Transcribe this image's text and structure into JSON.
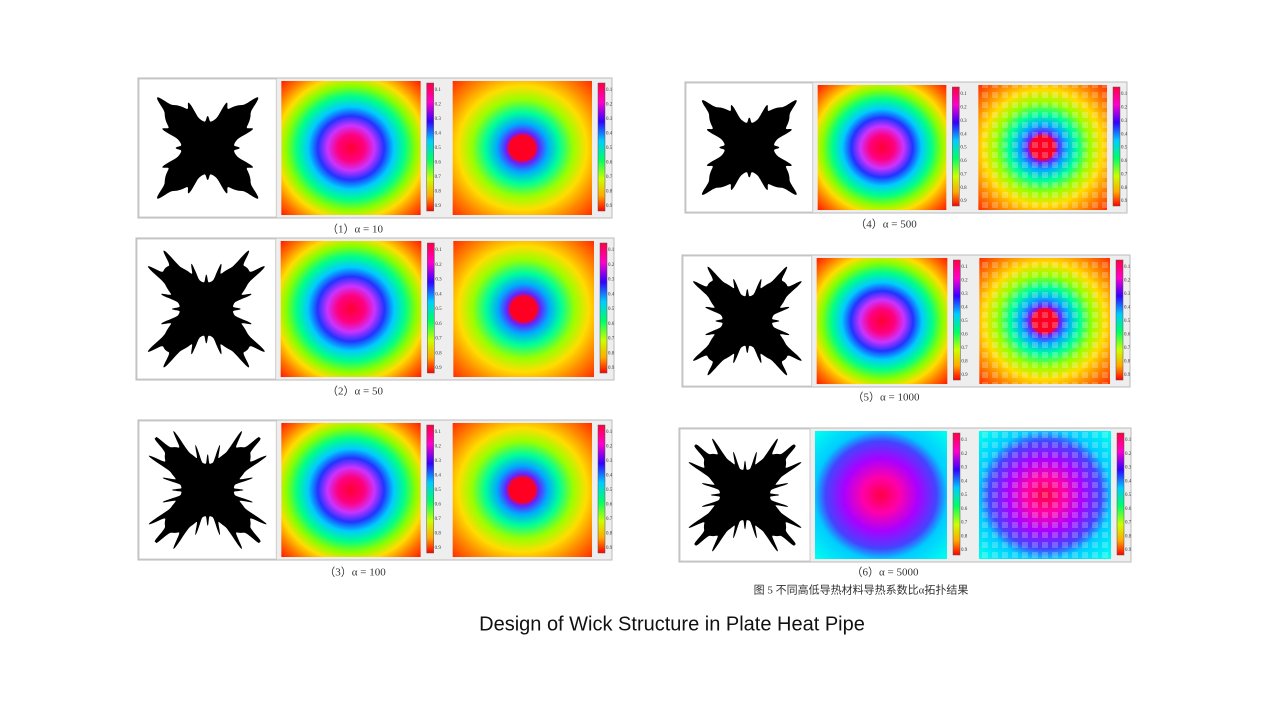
{
  "title": "Design of Wick Structure in Plate Heat Pipe",
  "figure_caption": "图 5 不同高低导热材料导热系数比α拓扑结果",
  "colorbar_ticks": [
    "0.1",
    "0.2",
    "0.3",
    "0.4",
    "0.5",
    "0.6",
    "0.7",
    "0.8",
    "0.9"
  ],
  "panels": [
    {
      "caption": "（1）α = 10"
    },
    {
      "caption": "（2）α = 50"
    },
    {
      "caption": "（3）α = 100"
    },
    {
      "caption": "（4）α = 500"
    },
    {
      "caption": "（5）α = 1000"
    },
    {
      "caption": "（6）α = 5000"
    }
  ]
}
